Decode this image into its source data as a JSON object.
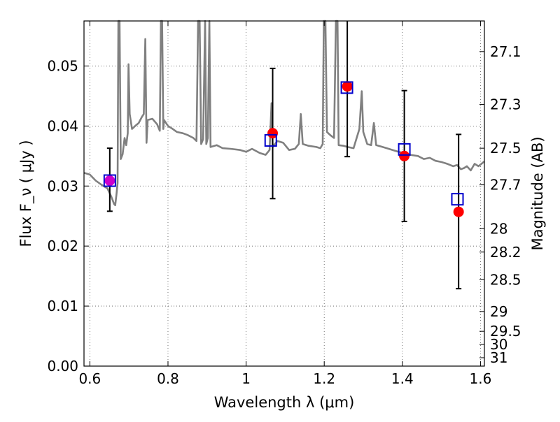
{
  "chart_data": {
    "type": "scatter",
    "xlabel": "Wavelength  λ (μm)",
    "ylabel": "Flux  F_ν  ( μJy )",
    "ylabel_right": "Magnitude (AB)",
    "xlim": [
      0.585,
      1.61
    ],
    "ylim": [
      0.0,
      0.0575
    ],
    "grid": true,
    "x_ticks": [
      {
        "value": 0.6,
        "label": "0.6"
      },
      {
        "value": 0.8,
        "label": "0.8"
      },
      {
        "value": 1.0,
        "label": "1"
      },
      {
        "value": 1.2,
        "label": "1.2"
      },
      {
        "value": 1.4,
        "label": "1.4"
      },
      {
        "value": 1.6,
        "label": "1.6"
      }
    ],
    "y_ticks": [
      {
        "value": 0.0,
        "label": "0.00"
      },
      {
        "value": 0.01,
        "label": "0.01"
      },
      {
        "value": 0.02,
        "label": "0.02"
      },
      {
        "value": 0.03,
        "label": "0.03"
      },
      {
        "value": 0.04,
        "label": "0.04"
      },
      {
        "value": 0.05,
        "label": "0.05"
      }
    ],
    "right_ticks": [
      {
        "flux": 0.0524,
        "label": "27.1"
      },
      {
        "flux": 0.0436,
        "label": "27.3"
      },
      {
        "flux": 0.0363,
        "label": "27.5"
      },
      {
        "flux": 0.0302,
        "label": "27.7"
      },
      {
        "flux": 0.0229,
        "label": "28"
      },
      {
        "flux": 0.019,
        "label": "28.2"
      },
      {
        "flux": 0.0144,
        "label": "28.5"
      },
      {
        "flux": 0.0091,
        "label": "29"
      },
      {
        "flux": 0.0058,
        "label": "29.5"
      },
      {
        "flux": 0.0036,
        "label": "30"
      },
      {
        "flux": 0.0014,
        "label": "31"
      }
    ],
    "spectrum": {
      "color": "#808080",
      "points": [
        [
          0.585,
          0.0322
        ],
        [
          0.6,
          0.0319
        ],
        [
          0.615,
          0.0309
        ],
        [
          0.63,
          0.0302
        ],
        [
          0.645,
          0.0296
        ],
        [
          0.655,
          0.0282
        ],
        [
          0.662,
          0.027
        ],
        [
          0.665,
          0.0268
        ],
        [
          0.668,
          0.0285
        ],
        [
          0.671,
          0.0305
        ],
        [
          0.673,
          0.0575
        ],
        [
          0.676,
          0.0575
        ],
        [
          0.679,
          0.0345
        ],
        [
          0.684,
          0.0353
        ],
        [
          0.689,
          0.038
        ],
        [
          0.693,
          0.0368
        ],
        [
          0.697,
          0.0388
        ],
        [
          0.699,
          0.0503
        ],
        [
          0.702,
          0.042
        ],
        [
          0.708,
          0.0395
        ],
        [
          0.716,
          0.04
        ],
        [
          0.725,
          0.0405
        ],
        [
          0.733,
          0.0415
        ],
        [
          0.738,
          0.042
        ],
        [
          0.742,
          0.0545
        ],
        [
          0.745,
          0.0372
        ],
        [
          0.748,
          0.041
        ],
        [
          0.76,
          0.0412
        ],
        [
          0.772,
          0.0403
        ],
        [
          0.779,
          0.0392
        ],
        [
          0.782,
          0.0575
        ],
        [
          0.785,
          0.0575
        ],
        [
          0.788,
          0.0395
        ],
        [
          0.79,
          0.041
        ],
        [
          0.8,
          0.04
        ],
        [
          0.81,
          0.0396
        ],
        [
          0.823,
          0.039
        ],
        [
          0.838,
          0.0388
        ],
        [
          0.85,
          0.0385
        ],
        [
          0.865,
          0.038
        ],
        [
          0.873,
          0.0375
        ],
        [
          0.877,
          0.0575
        ],
        [
          0.881,
          0.0575
        ],
        [
          0.885,
          0.037
        ],
        [
          0.89,
          0.0378
        ],
        [
          0.895,
          0.0575
        ],
        [
          0.898,
          0.037
        ],
        [
          0.902,
          0.038
        ],
        [
          0.906,
          0.0575
        ],
        [
          0.909,
          0.0365
        ],
        [
          0.925,
          0.0368
        ],
        [
          0.94,
          0.0363
        ],
        [
          0.96,
          0.0362
        ],
        [
          0.985,
          0.036
        ],
        [
          1.0,
          0.0357
        ],
        [
          1.015,
          0.0362
        ],
        [
          1.035,
          0.0355
        ],
        [
          1.05,
          0.0352
        ],
        [
          1.06,
          0.036
        ],
        [
          1.065,
          0.0438
        ],
        [
          1.068,
          0.0365
        ],
        [
          1.08,
          0.0375
        ],
        [
          1.095,
          0.0372
        ],
        [
          1.11,
          0.036
        ],
        [
          1.125,
          0.0362
        ],
        [
          1.135,
          0.037
        ],
        [
          1.14,
          0.042
        ],
        [
          1.145,
          0.037
        ],
        [
          1.16,
          0.0367
        ],
        [
          1.18,
          0.0365
        ],
        [
          1.19,
          0.0363
        ],
        [
          1.196,
          0.037
        ],
        [
          1.199,
          0.0575
        ],
        [
          1.203,
          0.0575
        ],
        [
          1.207,
          0.039
        ],
        [
          1.215,
          0.0385
        ],
        [
          1.225,
          0.038
        ],
        [
          1.23,
          0.0575
        ],
        [
          1.234,
          0.0575
        ],
        [
          1.237,
          0.0368
        ],
        [
          1.25,
          0.0367
        ],
        [
          1.26,
          0.0365
        ],
        [
          1.275,
          0.0363
        ],
        [
          1.29,
          0.0395
        ],
        [
          1.296,
          0.0458
        ],
        [
          1.3,
          0.039
        ],
        [
          1.31,
          0.037
        ],
        [
          1.32,
          0.0368
        ],
        [
          1.327,
          0.0405
        ],
        [
          1.333,
          0.0368
        ],
        [
          1.345,
          0.0366
        ],
        [
          1.36,
          0.0363
        ],
        [
          1.375,
          0.036
        ],
        [
          1.39,
          0.0357
        ],
        [
          1.405,
          0.0355
        ],
        [
          1.42,
          0.0352
        ],
        [
          1.44,
          0.035
        ],
        [
          1.455,
          0.0345
        ],
        [
          1.47,
          0.0347
        ],
        [
          1.485,
          0.0342
        ],
        [
          1.5,
          0.034
        ],
        [
          1.515,
          0.0337
        ],
        [
          1.53,
          0.0333
        ],
        [
          1.54,
          0.0335
        ],
        [
          1.55,
          0.0328
        ],
        [
          1.558,
          0.033
        ],
        [
          1.565,
          0.0333
        ],
        [
          1.575,
          0.0326
        ],
        [
          1.585,
          0.0337
        ],
        [
          1.595,
          0.0333
        ],
        [
          1.61,
          0.0341
        ]
      ]
    },
    "series": [
      {
        "marker": "square",
        "color": "#0000cc",
        "points": [
          {
            "x": 0.651,
            "y": 0.0309
          },
          {
            "x": 1.063,
            "y": 0.0376
          },
          {
            "x": 1.258,
            "y": 0.0464
          },
          {
            "x": 1.405,
            "y": 0.0361
          },
          {
            "x": 1.541,
            "y": 0.0278
          }
        ]
      },
      {
        "marker": "circle",
        "color": "#ff0000",
        "points": [
          {
            "x": 0.651,
            "y": 0.0309,
            "yerr_low": 0.0258,
            "yerr_high": 0.0363,
            "fill": "#cc00cc"
          },
          {
            "x": 1.068,
            "y": 0.0388,
            "yerr_low": 0.0279,
            "yerr_high": 0.0496
          },
          {
            "x": 1.259,
            "y": 0.0466,
            "yerr_low": 0.0349,
            "yerr_high": 0.0575
          },
          {
            "x": 1.405,
            "y": 0.035,
            "yerr_low": 0.0241,
            "yerr_high": 0.0459
          },
          {
            "x": 1.544,
            "y": 0.0257,
            "yerr_low": 0.0129,
            "yerr_high": 0.0386
          }
        ]
      }
    ]
  }
}
